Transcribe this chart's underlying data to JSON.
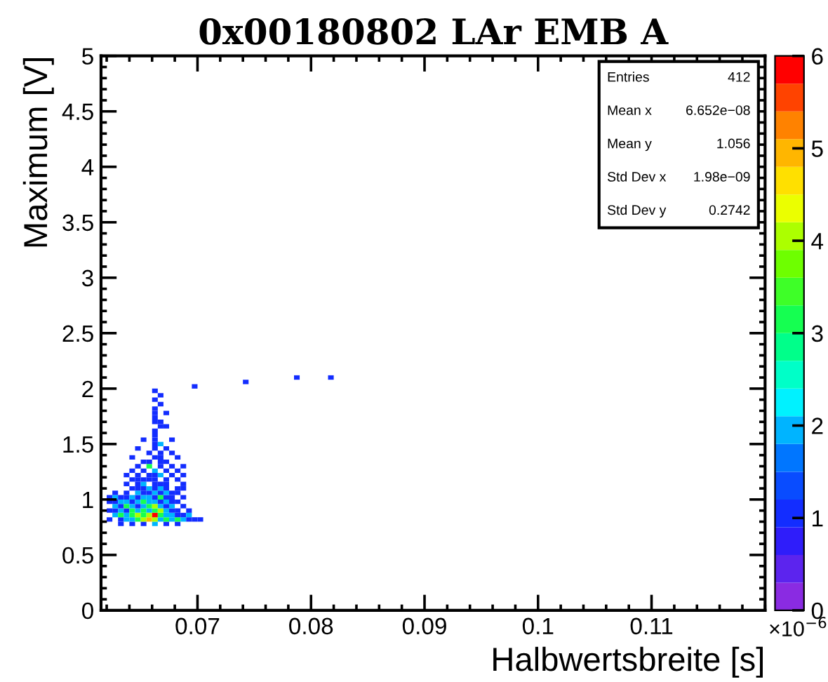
{
  "chart_data": {
    "type": "heatmap",
    "title": "0x00180802 LAr EMB A",
    "xlabel": "Halbwertsbreite [s]",
    "ylabel": "Maximum [V]",
    "annotations": [
      "Entries",
      "412",
      "Mean x",
      "6.652e−08",
      "Mean y",
      "1.056",
      "Std Dev x",
      "1.98e−09",
      "Std Dev y",
      "0.2742",
      "×10$^{−6}$"
    ],
    "xlim": [
      0.0615,
      0.12
    ],
    "xticks": [
      0.07,
      0.08,
      0.09,
      0.1,
      0.11
    ],
    "ylim": [
      0,
      5
    ],
    "yticks": [
      0,
      0.5,
      1,
      1.5,
      2,
      2.5,
      3,
      3.5,
      4,
      4.5,
      5
    ],
    "clim": [
      0,
      6
    ],
    "cticks": [
      0,
      1,
      2,
      3,
      4,
      5,
      6
    ],
    "x": [
      0.06225,
      0.06275,
      0.06325,
      0.06375,
      0.06425,
      0.06475,
      0.06525,
      0.06575,
      0.06625,
      0.06675,
      0.06725,
      0.06775,
      0.06825,
      0.06875,
      0.06925,
      0.06975,
      0.07025,
      0.07075,
      0.07125,
      0.07175,
      0.07225,
      0.07275,
      0.07325,
      0.07375,
      0.07425,
      0.07475,
      0.07525,
      0.07575,
      0.07625,
      0.07675,
      0.07725,
      0.07775,
      0.07825,
      0.07875,
      0.07925,
      0.07975,
      0.08025,
      0.08075,
      0.08125,
      0.08175
    ],
    "y": [
      2.1,
      2.06,
      2.02,
      1.98,
      1.94,
      1.9,
      1.86,
      1.82,
      1.78,
      1.74,
      1.7,
      1.66,
      1.62,
      1.58,
      1.54,
      1.5,
      1.46,
      1.42,
      1.38,
      1.34,
      1.3,
      1.26,
      1.22,
      1.18,
      1.14,
      1.1,
      1.06,
      1.02,
      0.98,
      0.94,
      0.9,
      0.86,
      0.82,
      0.78
    ],
    "cells": [
      [
        null,
        null,
        null,
        null,
        null,
        null,
        null,
        null,
        null,
        null,
        null,
        null,
        null,
        null,
        null,
        null,
        null,
        null,
        null,
        null,
        null,
        null,
        null,
        null,
        null,
        null,
        null,
        null,
        null,
        null,
        null,
        null,
        null,
        1,
        null,
        null,
        null,
        null,
        null,
        1
      ],
      [
        null,
        null,
        null,
        null,
        null,
        null,
        null,
        null,
        null,
        null,
        null,
        null,
        null,
        null,
        null,
        null,
        null,
        null,
        null,
        null,
        null,
        null,
        null,
        null,
        1,
        null,
        null,
        null,
        null,
        null,
        null,
        null,
        null,
        null,
        null,
        null,
        null,
        null,
        null,
        null
      ],
      [
        null,
        null,
        null,
        null,
        null,
        null,
        null,
        null,
        null,
        null,
        null,
        null,
        null,
        null,
        null,
        1,
        null,
        null,
        null,
        null,
        null,
        null,
        null,
        null,
        null,
        null,
        null,
        null,
        null,
        null,
        null,
        null,
        null,
        null,
        null,
        null,
        null,
        null,
        null,
        null
      ],
      [
        null,
        null,
        null,
        null,
        null,
        null,
        null,
        null,
        1,
        null,
        null,
        null,
        null,
        null,
        null,
        null,
        null,
        null,
        null,
        null,
        null,
        null,
        null,
        null,
        null,
        null,
        null,
        null,
        null,
        null,
        null,
        null,
        null,
        null,
        null,
        null,
        null,
        null,
        null,
        null
      ],
      [
        null,
        null,
        null,
        null,
        null,
        null,
        null,
        null,
        null,
        1,
        null,
        null,
        null,
        null,
        null,
        null,
        null,
        null,
        null,
        null,
        null,
        null,
        null,
        null,
        null,
        null,
        null,
        null,
        null,
        null,
        null,
        null,
        null,
        null,
        null,
        null,
        null,
        null,
        null,
        null
      ],
      [
        null,
        null,
        null,
        null,
        null,
        null,
        null,
        null,
        1,
        null,
        null,
        null,
        null,
        null,
        null,
        null,
        null,
        null,
        null,
        null,
        null,
        null,
        null,
        null,
        null,
        null,
        null,
        null,
        null,
        null,
        null,
        null,
        null,
        null,
        null,
        null,
        null,
        null,
        null,
        null
      ],
      [
        null,
        null,
        null,
        null,
        null,
        null,
        null,
        null,
        null,
        1,
        null,
        null,
        null,
        null,
        null,
        null,
        null,
        null,
        null,
        null,
        null,
        null,
        null,
        null,
        null,
        null,
        null,
        null,
        null,
        null,
        null,
        null,
        null,
        null,
        null,
        null,
        null,
        null,
        null,
        null
      ],
      [
        null,
        null,
        null,
        null,
        null,
        null,
        null,
        null,
        1,
        null,
        null,
        null,
        null,
        null,
        null,
        null,
        null,
        null,
        null,
        null,
        null,
        null,
        null,
        null,
        null,
        null,
        null,
        null,
        null,
        null,
        null,
        null,
        null,
        null,
        null,
        null,
        null,
        null,
        null,
        null
      ],
      [
        null,
        null,
        null,
        null,
        null,
        null,
        null,
        null,
        1,
        null,
        1,
        null,
        null,
        null,
        null,
        null,
        null,
        null,
        null,
        null,
        null,
        null,
        null,
        null,
        null,
        null,
        null,
        null,
        null,
        null,
        null,
        null,
        null,
        null,
        null,
        null,
        null,
        null,
        null,
        null
      ],
      [
        null,
        null,
        null,
        null,
        null,
        null,
        null,
        null,
        1,
        null,
        null,
        null,
        null,
        null,
        null,
        null,
        null,
        null,
        null,
        null,
        null,
        null,
        null,
        null,
        null,
        null,
        null,
        null,
        null,
        null,
        null,
        null,
        null,
        null,
        null,
        null,
        null,
        null,
        null,
        null
      ],
      [
        null,
        null,
        null,
        null,
        null,
        null,
        null,
        null,
        1,
        1,
        null,
        null,
        null,
        null,
        null,
        null,
        null,
        null,
        null,
        null,
        null,
        null,
        null,
        null,
        null,
        null,
        null,
        null,
        null,
        null,
        null,
        null,
        null,
        null,
        null,
        null,
        null,
        null,
        null,
        null
      ],
      [
        null,
        null,
        null,
        null,
        null,
        null,
        null,
        null,
        null,
        1,
        1,
        null,
        null,
        null,
        null,
        null,
        null,
        null,
        null,
        null,
        null,
        null,
        null,
        null,
        null,
        null,
        null,
        null,
        null,
        null,
        null,
        null,
        null,
        null,
        null,
        null,
        null,
        null,
        null,
        null
      ],
      [
        null,
        null,
        null,
        null,
        null,
        null,
        null,
        null,
        1,
        null,
        null,
        null,
        null,
        null,
        null,
        null,
        null,
        null,
        null,
        null,
        null,
        null,
        null,
        null,
        null,
        null,
        null,
        null,
        null,
        null,
        null,
        null,
        null,
        null,
        null,
        null,
        null,
        null,
        null,
        null
      ],
      [
        null,
        null,
        null,
        null,
        null,
        null,
        null,
        null,
        1,
        null,
        null,
        null,
        null,
        null,
        null,
        null,
        null,
        null,
        null,
        null,
        null,
        null,
        null,
        null,
        null,
        null,
        null,
        null,
        null,
        null,
        null,
        null,
        null,
        null,
        null,
        null,
        null,
        null,
        null,
        null
      ],
      [
        null,
        null,
        null,
        null,
        null,
        null,
        1,
        null,
        1,
        null,
        null,
        1,
        null,
        null,
        null,
        null,
        null,
        null,
        null,
        null,
        null,
        null,
        null,
        null,
        null,
        null,
        null,
        null,
        null,
        null,
        null,
        null,
        null,
        null,
        null,
        null,
        null,
        null,
        null,
        null
      ],
      [
        null,
        null,
        null,
        null,
        null,
        null,
        null,
        null,
        1,
        2,
        null,
        null,
        null,
        null,
        null,
        null,
        null,
        null,
        null,
        null,
        null,
        null,
        null,
        null,
        null,
        null,
        null,
        null,
        null,
        null,
        null,
        null,
        null,
        null,
        null,
        null,
        null,
        null,
        null,
        null
      ],
      [
        null,
        null,
        null,
        null,
        null,
        1,
        null,
        null,
        1,
        null,
        1,
        null,
        null,
        null,
        null,
        null,
        null,
        null,
        null,
        null,
        null,
        null,
        null,
        null,
        null,
        null,
        null,
        null,
        null,
        null,
        null,
        null,
        null,
        null,
        null,
        null,
        null,
        null,
        null,
        null
      ],
      [
        null,
        null,
        null,
        null,
        null,
        null,
        null,
        1,
        null,
        1,
        null,
        1,
        null,
        null,
        null,
        null,
        null,
        null,
        null,
        null,
        null,
        null,
        null,
        null,
        null,
        null,
        null,
        null,
        null,
        null,
        null,
        null,
        null,
        null,
        null,
        null,
        null,
        null,
        null,
        null
      ],
      [
        null,
        null,
        null,
        null,
        1,
        null,
        null,
        null,
        1,
        1,
        null,
        null,
        1,
        null,
        null,
        null,
        null,
        null,
        null,
        null,
        null,
        null,
        null,
        null,
        null,
        null,
        null,
        null,
        null,
        null,
        null,
        null,
        null,
        null,
        null,
        null,
        null,
        null,
        null,
        null
      ],
      [
        null,
        null,
        null,
        null,
        null,
        null,
        1,
        1,
        null,
        1,
        1,
        null,
        null,
        null,
        null,
        null,
        null,
        null,
        null,
        null,
        null,
        null,
        null,
        null,
        null,
        null,
        null,
        null,
        null,
        null,
        null,
        null,
        null,
        null,
        null,
        null,
        null,
        null,
        null,
        null
      ],
      [
        null,
        null,
        null,
        null,
        null,
        1,
        null,
        3,
        null,
        1,
        null,
        1,
        null,
        1,
        null,
        null,
        null,
        null,
        null,
        null,
        null,
        null,
        null,
        null,
        null,
        null,
        null,
        null,
        null,
        null,
        null,
        null,
        null,
        null,
        null,
        null,
        null,
        null,
        null,
        null
      ],
      [
        null,
        null,
        null,
        null,
        1,
        null,
        1,
        null,
        2,
        null,
        1,
        null,
        1,
        null,
        null,
        null,
        null,
        null,
        null,
        null,
        null,
        null,
        null,
        null,
        null,
        null,
        null,
        null,
        null,
        null,
        null,
        null,
        null,
        null,
        null,
        null,
        null,
        null,
        null,
        null
      ],
      [
        null,
        null,
        null,
        1,
        null,
        1,
        null,
        1,
        1,
        2,
        null,
        1,
        null,
        1,
        null,
        null,
        null,
        null,
        null,
        null,
        null,
        null,
        null,
        null,
        null,
        null,
        null,
        null,
        null,
        null,
        null,
        null,
        null,
        null,
        null,
        null,
        null,
        null,
        null,
        null
      ],
      [
        null,
        null,
        null,
        null,
        1,
        1,
        1,
        1,
        1,
        null,
        1,
        null,
        1,
        null,
        null,
        null,
        null,
        null,
        null,
        null,
        null,
        null,
        null,
        null,
        null,
        null,
        null,
        null,
        null,
        null,
        null,
        null,
        null,
        null,
        null,
        null,
        null,
        null,
        null,
        null
      ],
      [
        null,
        null,
        null,
        1,
        null,
        1,
        2,
        null,
        1,
        1,
        1,
        null,
        null,
        1,
        null,
        null,
        null,
        null,
        null,
        null,
        null,
        null,
        null,
        null,
        null,
        null,
        null,
        null,
        null,
        null,
        null,
        null,
        null,
        null,
        null,
        null,
        null,
        null,
        null,
        null
      ],
      [
        null,
        null,
        null,
        null,
        1,
        1,
        1,
        2,
        1,
        2,
        1,
        null,
        1,
        1,
        null,
        null,
        null,
        null,
        null,
        null,
        null,
        null,
        null,
        null,
        null,
        null,
        null,
        null,
        null,
        null,
        null,
        null,
        null,
        null,
        null,
        null,
        null,
        null,
        null,
        null
      ],
      [
        null,
        1,
        null,
        1,
        null,
        2,
        1,
        1,
        2,
        1,
        2,
        1,
        1,
        null,
        null,
        null,
        null,
        null,
        null,
        null,
        null,
        null,
        null,
        null,
        null,
        null,
        null,
        null,
        null,
        null,
        null,
        null,
        null,
        null,
        null,
        null,
        null,
        null,
        null,
        null
      ],
      [
        1,
        2,
        1,
        1,
        2,
        1,
        2,
        2,
        1,
        3,
        1,
        1,
        null,
        1,
        null,
        null,
        null,
        null,
        null,
        null,
        null,
        null,
        null,
        null,
        null,
        null,
        null,
        null,
        null,
        null,
        null,
        null,
        null,
        null,
        null,
        null,
        null,
        null,
        null,
        null
      ],
      [
        1,
        1,
        2,
        2,
        1,
        2,
        3,
        2,
        2,
        1,
        2,
        1,
        1,
        null,
        null,
        null,
        null,
        null,
        null,
        null,
        null,
        null,
        null,
        null,
        null,
        null,
        null,
        null,
        null,
        null,
        null,
        null,
        null,
        null,
        null,
        null,
        null,
        null,
        null,
        null
      ],
      [
        null,
        2,
        1,
        3,
        2,
        1,
        2,
        3,
        4,
        2,
        1,
        2,
        null,
        1,
        null,
        null,
        null,
        null,
        null,
        null,
        null,
        null,
        null,
        null,
        null,
        null,
        null,
        null,
        null,
        null,
        null,
        null,
        null,
        null,
        null,
        null,
        null,
        null,
        null,
        null
      ],
      [
        1,
        1,
        2,
        1,
        3,
        2,
        3,
        2,
        3,
        4,
        2,
        1,
        1,
        null,
        1,
        null,
        null,
        null,
        null,
        null,
        null,
        null,
        null,
        null,
        null,
        null,
        null,
        null,
        null,
        null,
        null,
        null,
        null,
        null,
        null,
        null,
        null,
        null,
        null,
        null
      ],
      [
        null,
        2,
        3,
        2,
        3,
        4,
        3,
        4,
        6,
        3,
        2,
        2,
        1,
        1,
        2,
        null,
        null,
        null,
        null,
        null,
        null,
        null,
        null,
        null,
        null,
        null,
        null,
        null,
        null,
        null,
        null,
        null,
        null,
        null,
        null,
        null,
        null,
        null,
        null,
        null
      ],
      [
        1,
        null,
        1,
        2,
        2,
        3,
        4,
        5,
        4,
        2,
        3,
        2,
        3,
        2,
        1,
        1,
        1,
        null,
        null,
        null,
        null,
        null,
        null,
        null,
        null,
        null,
        null,
        null,
        null,
        null,
        null,
        null,
        null,
        null,
        null,
        null,
        null,
        null,
        null,
        null
      ],
      [
        null,
        null,
        1,
        null,
        1,
        null,
        1,
        null,
        2,
        null,
        1,
        null,
        1,
        null,
        null,
        null,
        null,
        null,
        null,
        null,
        null,
        null,
        null,
        null,
        null,
        null,
        null,
        null,
        null,
        null,
        null,
        null,
        null,
        null,
        null,
        null,
        null,
        null,
        null,
        null
      ]
    ]
  }
}
